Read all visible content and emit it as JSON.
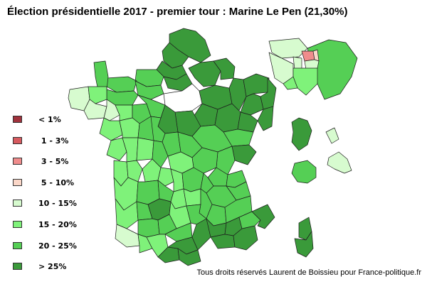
{
  "title": "Élection présidentielle 2017 - premier tour : Marine Le Pen (21,30%)",
  "legend": [
    {
      "label": "< 1%",
      "color": "#a0323c"
    },
    {
      "label": " 1 - 3%",
      "color": "#d75a5f"
    },
    {
      "label": " 3 - 5%",
      "color": "#f08c8c"
    },
    {
      "label": " 5 - 10%",
      "color": "#fbd7c8"
    },
    {
      "label": "10 - 15%",
      "color": "#d7fbcf"
    },
    {
      "label": "15 - 20%",
      "color": "#7ff27a"
    },
    {
      "label": "20 - 25%",
      "color": "#55cf55"
    },
    {
      "label": "> 25%",
      "color": "#3a9a3a"
    }
  ],
  "credit": "Tous droits réservés Laurent de Boissieu pour France-politique.fr"
}
